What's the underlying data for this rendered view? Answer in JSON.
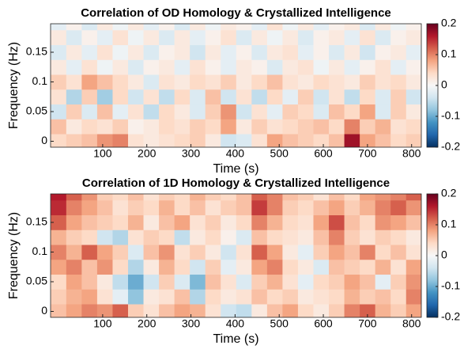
{
  "chart_data": [
    {
      "type": "heatmap",
      "title": "Correlation of OD Homology & Crystallized Intelligence",
      "xlabel": "Time (s)",
      "ylabel": "Frequency (Hz)",
      "x": [
        0,
        35,
        70,
        105,
        140,
        175,
        210,
        245,
        280,
        315,
        350,
        385,
        420,
        455,
        490,
        525,
        560,
        595,
        630,
        665,
        700,
        735,
        770,
        805
      ],
      "y": [
        0,
        0.025,
        0.05,
        0.075,
        0.1,
        0.125,
        0.15,
        0.175,
        0.2
      ],
      "z": [
        [
          0.04,
          0.05,
          0.06,
          0.09,
          0.1,
          0.03,
          0.02,
          0.03,
          0.04,
          0.05,
          0.02,
          -0.04,
          -0.03,
          0.03,
          0.08,
          0.06,
          0.05,
          0.04,
          0.06,
          0.17,
          0.08,
          0.06,
          0.04,
          0.05
        ],
        [
          0.06,
          0.02,
          0.04,
          0.03,
          0.05,
          0.01,
          0.02,
          0.04,
          0.03,
          0.05,
          0.04,
          0.08,
          0.02,
          0.05,
          0.03,
          0.04,
          0.05,
          0.06,
          0.04,
          0.1,
          0.05,
          0.07,
          0.03,
          0.04
        ],
        [
          -0.04,
          0.05,
          -0.03,
          0.06,
          -0.02,
          0.03,
          -0.05,
          0.04,
          0.02,
          -0.03,
          0.05,
          0.09,
          -0.04,
          0.03,
          -0.02,
          0.05,
          0.04,
          -0.03,
          0.06,
          0.04,
          0.08,
          -0.03,
          0.05,
          0.02
        ],
        [
          0.03,
          -0.06,
          0.05,
          -0.07,
          0.04,
          -0.04,
          0.03,
          -0.05,
          0.04,
          -0.03,
          0.06,
          -0.04,
          0.03,
          -0.05,
          0.04,
          -0.02,
          0.05,
          -0.04,
          0.03,
          -0.05,
          0.04,
          -0.03,
          0.05,
          -0.04
        ],
        [
          0.05,
          0.03,
          0.08,
          0.06,
          0.04,
          0.02,
          -0.03,
          0.03,
          0.02,
          0.04,
          0.03,
          0.05,
          0.02,
          0.04,
          0.06,
          0.03,
          0.02,
          0.04,
          0.03,
          0.02,
          0.05,
          0.03,
          0.04,
          0.02
        ],
        [
          0.02,
          -0.02,
          0.03,
          -0.01,
          0.02,
          -0.03,
          0.01,
          0.02,
          -0.02,
          0.03,
          0.01,
          -0.02,
          0.02,
          0.01,
          -0.03,
          0.02,
          0.03,
          -0.01,
          0.02,
          -0.02,
          0.01,
          0.03,
          -0.02,
          0.01
        ],
        [
          -0.03,
          0.02,
          -0.02,
          0.03,
          -0.01,
          0.02,
          -0.03,
          0.01,
          0.02,
          -0.04,
          0.02,
          -0.02,
          0.01,
          -0.03,
          0.02,
          0.03,
          -0.02,
          0.01,
          -0.03,
          0.02,
          -0.04,
          0.01,
          0.02,
          -0.02
        ],
        [
          0.02,
          -0.03,
          0.01,
          -0.02,
          0.03,
          -0.01,
          0.02,
          -0.03,
          0.02,
          -0.02,
          0.01,
          0.03,
          -0.03,
          0.02,
          -0.01,
          0.02,
          -0.03,
          0.01,
          0.02,
          -0.02,
          0.03,
          -0.03,
          0.01,
          0.02
        ],
        [
          -0.02,
          0.01,
          -0.03,
          0.02,
          -0.01,
          0.02,
          -0.02,
          0.01,
          -0.03,
          0.02,
          -0.01,
          0.02,
          0.01,
          -0.02,
          0.03,
          -0.01,
          0.02,
          -0.02,
          0.01,
          0.02,
          -0.03,
          0.02,
          -0.01,
          0.01
        ]
      ],
      "xlim": [
        -18,
        822
      ],
      "ylim": [
        -0.01,
        0.198
      ],
      "xticks": [
        100,
        200,
        300,
        400,
        500,
        600,
        700,
        800
      ],
      "yticks": [
        0,
        0.05,
        0.1,
        0.15
      ],
      "clim": [
        -0.2,
        0.2
      ],
      "cticks": [
        -0.2,
        -0.1,
        0,
        0.1,
        0.2
      ],
      "colormap": [
        "#053061",
        "#2166ac",
        "#4393c3",
        "#92c5de",
        "#d1e5f0",
        "#f7f7f7",
        "#fddbc7",
        "#f4a582",
        "#d6604d",
        "#b2182b",
        "#67001f"
      ]
    },
    {
      "type": "heatmap",
      "title": "Correlation of 1D Homology & Crystallized Intelligence",
      "xlabel": "Time (s)",
      "ylabel": "Frequency (Hz)",
      "x": [
        0,
        35,
        70,
        105,
        140,
        175,
        210,
        245,
        280,
        315,
        350,
        385,
        420,
        455,
        490,
        525,
        560,
        595,
        630,
        665,
        700,
        735,
        770,
        805
      ],
      "y": [
        0,
        0.025,
        0.05,
        0.075,
        0.1,
        0.125,
        0.15,
        0.175,
        0.2
      ],
      "z": [
        [
          0.06,
          0.08,
          0.1,
          0.09,
          0.12,
          0.05,
          0.03,
          0.06,
          0.08,
          0.07,
          0.03,
          -0.04,
          -0.05,
          0.02,
          0.06,
          0.08,
          0.04,
          0.02,
          0.05,
          0.1,
          0.12,
          0.07,
          0.05,
          0.08
        ],
        [
          0.05,
          0.07,
          0.08,
          0.03,
          -0.02,
          -0.08,
          0.02,
          0.03,
          0.06,
          -0.06,
          0.04,
          0.02,
          0.03,
          0.06,
          0.04,
          0.05,
          0.02,
          0.03,
          0.04,
          0.07,
          0.05,
          0.06,
          0.04,
          0.1
        ],
        [
          0.04,
          0.08,
          0.06,
          0.02,
          -0.05,
          -0.1,
          -0.04,
          0.05,
          -0.03,
          -0.09,
          0.06,
          0.03,
          -0.03,
          0.05,
          0.07,
          0.03,
          -0.02,
          0.04,
          0.05,
          0.08,
          0.06,
          -0.02,
          0.05,
          0.09
        ],
        [
          0.08,
          0.1,
          0.06,
          0.09,
          0.04,
          -0.06,
          0.02,
          0.07,
          0.04,
          -0.04,
          0.05,
          -0.02,
          0.02,
          0.08,
          0.1,
          0.04,
          0.02,
          -0.03,
          0.06,
          0.05,
          0.04,
          0.07,
          0.03,
          0.08
        ],
        [
          0.1,
          0.07,
          0.12,
          0.08,
          0.05,
          -0.03,
          0.06,
          0.09,
          0.03,
          0.05,
          0.02,
          -0.04,
          0.03,
          0.12,
          0.08,
          0.02,
          -0.02,
          0.05,
          0.08,
          0.06,
          0.1,
          0.04,
          0.06,
          0.03
        ],
        [
          0.07,
          0.05,
          0.04,
          -0.04,
          -0.06,
          0.03,
          0.05,
          0.04,
          -0.05,
          0.02,
          0.04,
          0.01,
          -0.03,
          0.06,
          0.04,
          0.03,
          0.02,
          0.06,
          0.1,
          0.05,
          0.03,
          0.05,
          0.04,
          0.02
        ],
        [
          0.12,
          0.08,
          0.06,
          0.05,
          0.04,
          0.07,
          0.02,
          0.06,
          0.08,
          0.03,
          0.05,
          0.02,
          0.04,
          0.1,
          0.07,
          0.04,
          0.03,
          0.08,
          0.13,
          0.06,
          0.04,
          0.09,
          0.08,
          0.06
        ],
        [
          0.15,
          0.1,
          0.08,
          0.06,
          0.03,
          0.05,
          0.04,
          0.07,
          0.04,
          0.06,
          0.03,
          0.05,
          0.06,
          0.14,
          0.1,
          0.05,
          0.04,
          0.06,
          0.08,
          0.05,
          0.07,
          0.1,
          0.12,
          0.09
        ],
        [
          0.16,
          0.12,
          0.09,
          0.05,
          0.04,
          0.06,
          0.03,
          0.05,
          0.04,
          0.07,
          0.05,
          0.04,
          0.06,
          0.12,
          0.1,
          0.06,
          0.05,
          0.03,
          0.06,
          0.04,
          0.08,
          0.09,
          0.1,
          0.12
        ]
      ],
      "xlim": [
        -18,
        822
      ],
      "ylim": [
        -0.01,
        0.198
      ],
      "xticks": [
        100,
        200,
        300,
        400,
        500,
        600,
        700,
        800
      ],
      "yticks": [
        0,
        0.05,
        0.1,
        0.15
      ],
      "clim": [
        -0.2,
        0.2
      ],
      "cticks": [
        -0.2,
        -0.1,
        0,
        0.1,
        0.2
      ],
      "colormap": [
        "#053061",
        "#2166ac",
        "#4393c3",
        "#92c5de",
        "#d1e5f0",
        "#f7f7f7",
        "#fddbc7",
        "#f4a582",
        "#d6604d",
        "#b2182b",
        "#67001f"
      ]
    }
  ]
}
